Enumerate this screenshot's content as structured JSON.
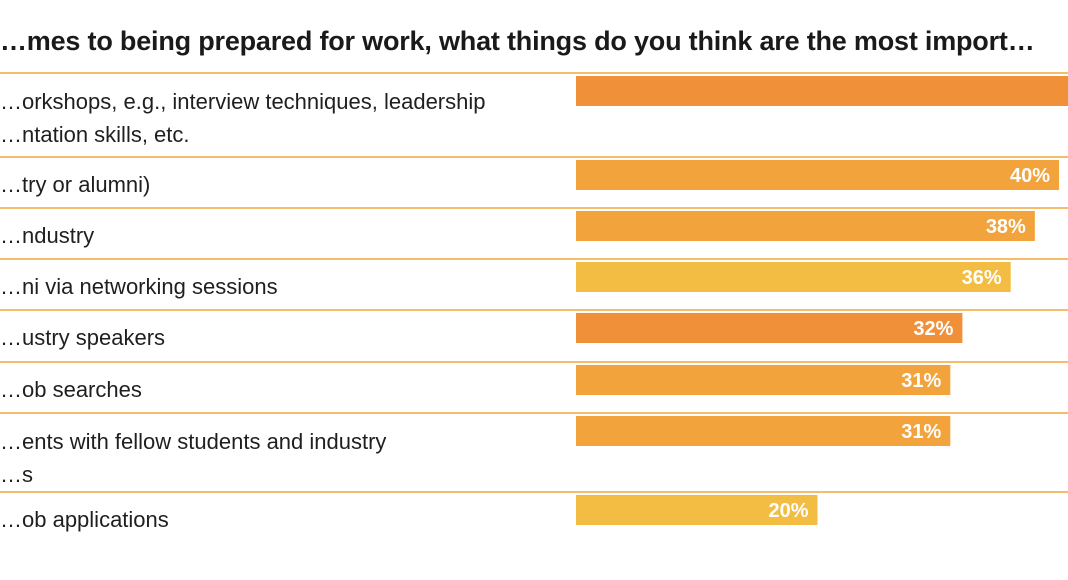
{
  "title": "…mes to being prepared for work, what things do you think are the most import…",
  "chart_data": {
    "type": "bar",
    "orientation": "horizontal",
    "xlim": [
      0,
      40
    ],
    "grid": false,
    "categories": [
      [
        "…orkshops, e.g., interview techniques, leadership",
        "…ntation skills, etc."
      ],
      [
        "…try or alumni)"
      ],
      [
        "…ndustry"
      ],
      [
        "…ni via networking sessions"
      ],
      [
        "…ustry speakers"
      ],
      [
        "…ob searches"
      ],
      [
        "…ents with fellow students and industry",
        "…s"
      ],
      [
        "…ob applications"
      ]
    ],
    "values": [
      42,
      40,
      38,
      36,
      32,
      31,
      31,
      20
    ],
    "value_labels": [
      "",
      "40%",
      "38%",
      "36%",
      "32%",
      "31%",
      "31%",
      "20%"
    ],
    "colors": [
      "#f0913a",
      "#f2a33c",
      "#f2a33c",
      "#f2bd42",
      "#f0913a",
      "#f2a33c",
      "#f2a33c",
      "#f2bd42"
    ]
  }
}
